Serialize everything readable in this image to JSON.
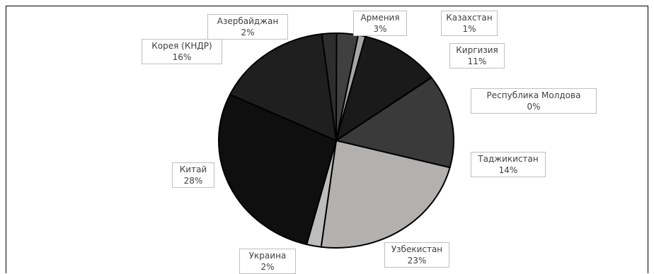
{
  "chart_data": {
    "type": "pie",
    "title": "",
    "slices": [
      {
        "name": "Армения",
        "value": 3,
        "label": "3%",
        "color": "#404040"
      },
      {
        "name": "Казахстан",
        "value": 1,
        "label": "1%",
        "color": "#a6a6a6"
      },
      {
        "name": "Киргизия",
        "value": 11,
        "label": "11%",
        "color": "#1a1a1a"
      },
      {
        "name": "Республика Молдова",
        "value": 0,
        "label": "0%",
        "color": "#303030"
      },
      {
        "name": "Таджикистан",
        "value": 14,
        "label": "14%",
        "color": "#3a3a3a"
      },
      {
        "name": "Узбекистан",
        "value": 23,
        "label": "23%",
        "color": "#b3b0b0"
      },
      {
        "name": "Украина",
        "value": 2,
        "label": "2%",
        "color": "#bdbdbd"
      },
      {
        "name": "Китай",
        "value": 28,
        "label": "28%",
        "color": "#0f0f0f"
      },
      {
        "name": "Корея (КНДР)",
        "value": 16,
        "label": "16%",
        "color": "#1f1f1f"
      },
      {
        "name": "Азербайджан",
        "value": 2,
        "label": "2%",
        "color": "#2e2e2e"
      }
    ],
    "legend": "none",
    "data_labels": "category name and percentage"
  }
}
